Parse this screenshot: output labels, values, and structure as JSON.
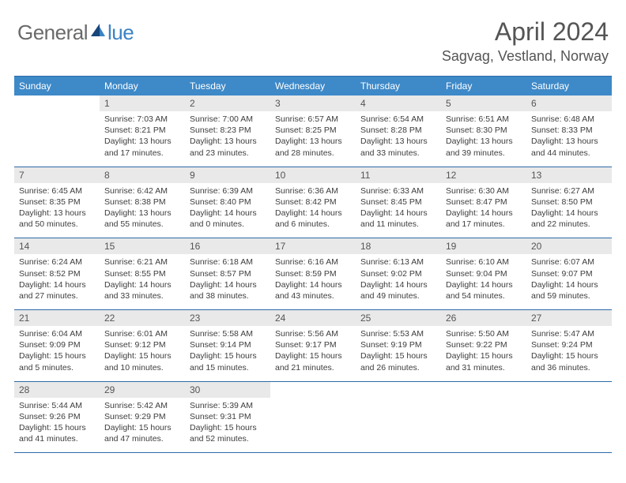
{
  "logo": {
    "part1": "General",
    "part2": "lue"
  },
  "title": "April 2024",
  "location": "Sagvag, Vestland, Norway",
  "headers": [
    "Sunday",
    "Monday",
    "Tuesday",
    "Wednesday",
    "Thursday",
    "Friday",
    "Saturday"
  ],
  "colors": {
    "header_bg": "#3e89c8",
    "header_text": "#ffffff",
    "rule": "#2b6aa8",
    "daynum_bg": "#e9e9e9",
    "logo_gray": "#6a6a6a",
    "logo_blue": "#3a83c5",
    "body_text": "#3d3d3d"
  },
  "weeks": [
    [
      {
        "n": "",
        "lines": []
      },
      {
        "n": "1",
        "lines": [
          "Sunrise: 7:03 AM",
          "Sunset: 8:21 PM",
          "Daylight: 13 hours and 17 minutes."
        ]
      },
      {
        "n": "2",
        "lines": [
          "Sunrise: 7:00 AM",
          "Sunset: 8:23 PM",
          "Daylight: 13 hours and 23 minutes."
        ]
      },
      {
        "n": "3",
        "lines": [
          "Sunrise: 6:57 AM",
          "Sunset: 8:25 PM",
          "Daylight: 13 hours and 28 minutes."
        ]
      },
      {
        "n": "4",
        "lines": [
          "Sunrise: 6:54 AM",
          "Sunset: 8:28 PM",
          "Daylight: 13 hours and 33 minutes."
        ]
      },
      {
        "n": "5",
        "lines": [
          "Sunrise: 6:51 AM",
          "Sunset: 8:30 PM",
          "Daylight: 13 hours and 39 minutes."
        ]
      },
      {
        "n": "6",
        "lines": [
          "Sunrise: 6:48 AM",
          "Sunset: 8:33 PM",
          "Daylight: 13 hours and 44 minutes."
        ]
      }
    ],
    [
      {
        "n": "7",
        "lines": [
          "Sunrise: 6:45 AM",
          "Sunset: 8:35 PM",
          "Daylight: 13 hours and 50 minutes."
        ]
      },
      {
        "n": "8",
        "lines": [
          "Sunrise: 6:42 AM",
          "Sunset: 8:38 PM",
          "Daylight: 13 hours and 55 minutes."
        ]
      },
      {
        "n": "9",
        "lines": [
          "Sunrise: 6:39 AM",
          "Sunset: 8:40 PM",
          "Daylight: 14 hours and 0 minutes."
        ]
      },
      {
        "n": "10",
        "lines": [
          "Sunrise: 6:36 AM",
          "Sunset: 8:42 PM",
          "Daylight: 14 hours and 6 minutes."
        ]
      },
      {
        "n": "11",
        "lines": [
          "Sunrise: 6:33 AM",
          "Sunset: 8:45 PM",
          "Daylight: 14 hours and 11 minutes."
        ]
      },
      {
        "n": "12",
        "lines": [
          "Sunrise: 6:30 AM",
          "Sunset: 8:47 PM",
          "Daylight: 14 hours and 17 minutes."
        ]
      },
      {
        "n": "13",
        "lines": [
          "Sunrise: 6:27 AM",
          "Sunset: 8:50 PM",
          "Daylight: 14 hours and 22 minutes."
        ]
      }
    ],
    [
      {
        "n": "14",
        "lines": [
          "Sunrise: 6:24 AM",
          "Sunset: 8:52 PM",
          "Daylight: 14 hours and 27 minutes."
        ]
      },
      {
        "n": "15",
        "lines": [
          "Sunrise: 6:21 AM",
          "Sunset: 8:55 PM",
          "Daylight: 14 hours and 33 minutes."
        ]
      },
      {
        "n": "16",
        "lines": [
          "Sunrise: 6:18 AM",
          "Sunset: 8:57 PM",
          "Daylight: 14 hours and 38 minutes."
        ]
      },
      {
        "n": "17",
        "lines": [
          "Sunrise: 6:16 AM",
          "Sunset: 8:59 PM",
          "Daylight: 14 hours and 43 minutes."
        ]
      },
      {
        "n": "18",
        "lines": [
          "Sunrise: 6:13 AM",
          "Sunset: 9:02 PM",
          "Daylight: 14 hours and 49 minutes."
        ]
      },
      {
        "n": "19",
        "lines": [
          "Sunrise: 6:10 AM",
          "Sunset: 9:04 PM",
          "Daylight: 14 hours and 54 minutes."
        ]
      },
      {
        "n": "20",
        "lines": [
          "Sunrise: 6:07 AM",
          "Sunset: 9:07 PM",
          "Daylight: 14 hours and 59 minutes."
        ]
      }
    ],
    [
      {
        "n": "21",
        "lines": [
          "Sunrise: 6:04 AM",
          "Sunset: 9:09 PM",
          "Daylight: 15 hours and 5 minutes."
        ]
      },
      {
        "n": "22",
        "lines": [
          "Sunrise: 6:01 AM",
          "Sunset: 9:12 PM",
          "Daylight: 15 hours and 10 minutes."
        ]
      },
      {
        "n": "23",
        "lines": [
          "Sunrise: 5:58 AM",
          "Sunset: 9:14 PM",
          "Daylight: 15 hours and 15 minutes."
        ]
      },
      {
        "n": "24",
        "lines": [
          "Sunrise: 5:56 AM",
          "Sunset: 9:17 PM",
          "Daylight: 15 hours and 21 minutes."
        ]
      },
      {
        "n": "25",
        "lines": [
          "Sunrise: 5:53 AM",
          "Sunset: 9:19 PM",
          "Daylight: 15 hours and 26 minutes."
        ]
      },
      {
        "n": "26",
        "lines": [
          "Sunrise: 5:50 AM",
          "Sunset: 9:22 PM",
          "Daylight: 15 hours and 31 minutes."
        ]
      },
      {
        "n": "27",
        "lines": [
          "Sunrise: 5:47 AM",
          "Sunset: 9:24 PM",
          "Daylight: 15 hours and 36 minutes."
        ]
      }
    ],
    [
      {
        "n": "28",
        "lines": [
          "Sunrise: 5:44 AM",
          "Sunset: 9:26 PM",
          "Daylight: 15 hours and 41 minutes."
        ]
      },
      {
        "n": "29",
        "lines": [
          "Sunrise: 5:42 AM",
          "Sunset: 9:29 PM",
          "Daylight: 15 hours and 47 minutes."
        ]
      },
      {
        "n": "30",
        "lines": [
          "Sunrise: 5:39 AM",
          "Sunset: 9:31 PM",
          "Daylight: 15 hours and 52 minutes."
        ]
      },
      {
        "n": "",
        "lines": []
      },
      {
        "n": "",
        "lines": []
      },
      {
        "n": "",
        "lines": []
      },
      {
        "n": "",
        "lines": []
      }
    ]
  ]
}
